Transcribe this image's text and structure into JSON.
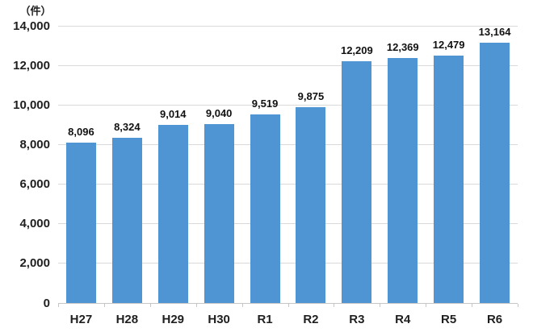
{
  "chart_data": {
    "type": "bar",
    "title": "",
    "unit_label": "（件）",
    "categories": [
      "H27",
      "H28",
      "H29",
      "H30",
      "R1",
      "R2",
      "R3",
      "R4",
      "R5",
      "R6"
    ],
    "values": [
      8096,
      8324,
      9014,
      9040,
      9519,
      9875,
      12209,
      12369,
      12479,
      13164
    ],
    "value_labels": [
      "8,096",
      "8,324",
      "9,014",
      "9,040",
      "9,519",
      "9,875",
      "12,209",
      "12,369",
      "12,479",
      "13,164"
    ],
    "ylim": [
      0,
      14000
    ],
    "ytick_step": 2000,
    "ytick_labels": [
      "0",
      "2,000",
      "4,000",
      "6,000",
      "8,000",
      "10,000",
      "12,000",
      "14,000"
    ],
    "grid": true,
    "legend": "none",
    "bar_color": "#4f95d3",
    "gridline_color": "#d9d9d9",
    "text_color": "#1f1f1f"
  }
}
